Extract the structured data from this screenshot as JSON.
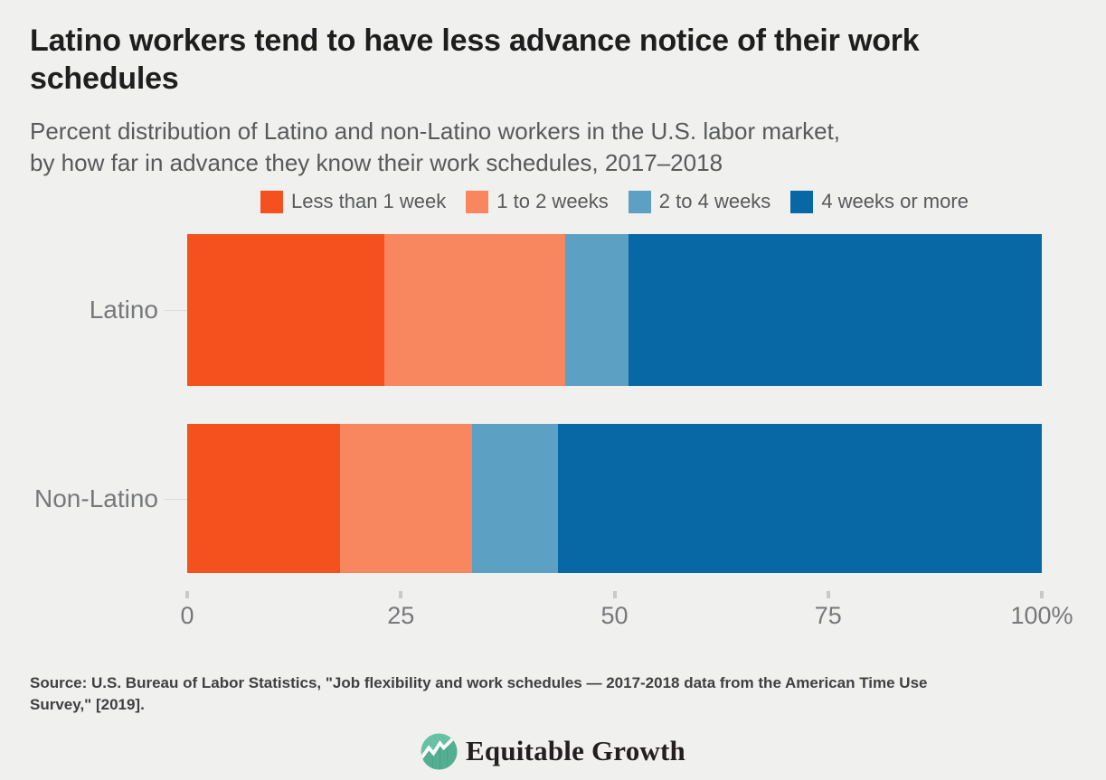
{
  "colors": {
    "background": "#f0f0ef",
    "title_text": "#1e1e1e",
    "subtitle_text": "#58595b",
    "axis_text": "#77787b",
    "source_text": "#404042",
    "logo_teal_light": "#68c0a5",
    "logo_teal_dark": "#54af92"
  },
  "header": {
    "title_lines": [
      "Latino workers tend to have less advance notice of their work",
      "schedules"
    ],
    "subtitle_lines": [
      "Percent distribution of Latino and non-Latino workers in the U.S. labor market,",
      "by how far in advance they know their work schedules, 2017–2018"
    ]
  },
  "chart_data": {
    "type": "bar",
    "orientation": "horizontal",
    "stacked": true,
    "unit": "percent",
    "categories": [
      "Latino",
      "Non-Latino"
    ],
    "series": [
      {
        "name": "Less than 1 week",
        "color": "#f4511e",
        "values": [
          23.1,
          17.9
        ]
      },
      {
        "name": "1 to 2 weeks",
        "color": "#f8865e",
        "values": [
          21.1,
          15.4
        ]
      },
      {
        "name": "2 to 4 weeks",
        "color": "#5ca0c4",
        "values": [
          7.4,
          10.1
        ]
      },
      {
        "name": "4 weeks or more",
        "color": "#0768a5",
        "values": [
          48.4,
          56.6
        ]
      }
    ],
    "x_ticks": [
      "0",
      "25",
      "50",
      "75",
      "100%"
    ],
    "xlim": [
      0,
      100
    ],
    "legend_position": "top",
    "grid": false,
    "title": "Latino workers tend to have less advance notice of their work schedules",
    "xlabel": "",
    "ylabel": ""
  },
  "footer": {
    "source_lines": [
      "Source: U.S. Bureau of Labor Statistics, \"Job flexibility and work schedules — 2017-2018 data from the American Time Use",
      "Survey,\" [2019]."
    ],
    "logo_text": "Equitable Growth"
  }
}
